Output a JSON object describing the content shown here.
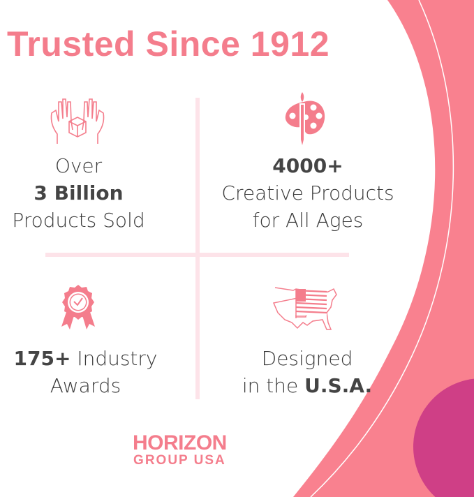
{
  "title": "Trusted Since 1912",
  "colors": {
    "accent": "#f47d8c",
    "purple": "#cf3f86",
    "divider": "#fde3e9",
    "text": "#3a3a3a"
  },
  "cells": [
    {
      "icon": "hands-box-icon",
      "line1": "Over",
      "bold": "3 Billion",
      "line3": "Products Sold"
    },
    {
      "icon": "palette-brush-icon",
      "bold": "4000+",
      "line2": "Creative Products",
      "line3": "for All Ages"
    },
    {
      "icon": "award-ribbon-icon",
      "bold": "175+",
      "rest": " Industry",
      "line2": "Awards"
    },
    {
      "icon": "usa-map-flag-icon",
      "line1": "Designed",
      "pre": "in the ",
      "bold": "U.S.A."
    }
  ],
  "logo": {
    "line1": "HORIZON",
    "line2": "GROUP USA"
  }
}
